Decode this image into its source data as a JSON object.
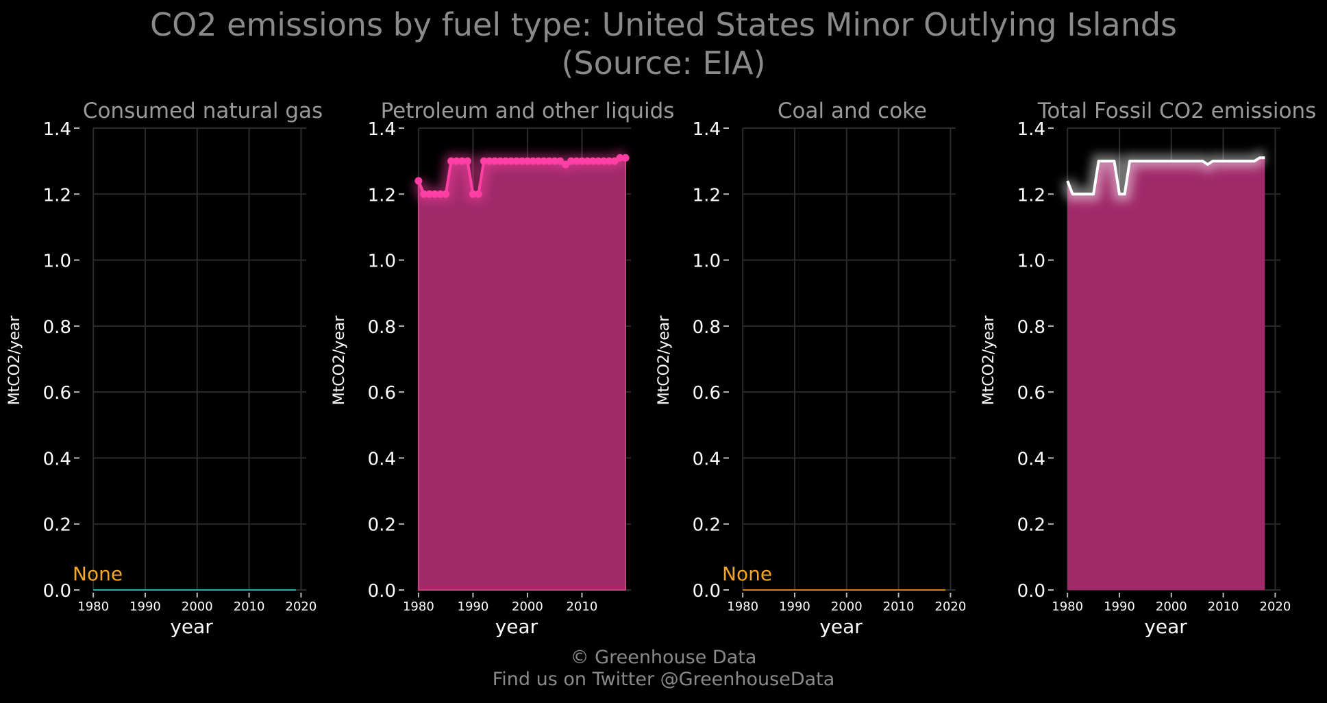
{
  "title_line1": "CO2 emissions by fuel type: United States Minor Outlying Islands",
  "title_line2": "(Source: EIA)",
  "footer_line1": "© Greenhouse Data",
  "footer_line2": "Find us on Twitter @GreenhouseData",
  "colors": {
    "background": "#000000",
    "grid": "#2b2b2b",
    "tick_text": "#ffffff",
    "title_text": "#8a8a8a",
    "panel_title": "#9a9a9a",
    "fill": "#a0296a",
    "petroleum_line": "#ff3fa4",
    "gas_line": "#1fb5b5",
    "coal_line": "#e07b1a",
    "total_line": "#ffffff",
    "none_label": "#f5a623"
  },
  "chart_data": [
    {
      "type": "line",
      "title": "Consumed natural gas",
      "xlabel": "year",
      "ylabel": "MtCO2/year",
      "xlim": [
        1978,
        2021
      ],
      "ylim": [
        0,
        1.4
      ],
      "xticks": [
        1980,
        1990,
        2000,
        2010,
        2020
      ],
      "yticks": [
        0.0,
        0.2,
        0.4,
        0.6,
        0.8,
        1.0,
        1.2,
        1.4
      ],
      "grid": true,
      "annotation": "None",
      "series": [
        {
          "color": "#1fb5b5",
          "markers": false,
          "fill": false,
          "x": [
            1980,
            2019
          ],
          "values": [
            0,
            0
          ]
        }
      ]
    },
    {
      "type": "area",
      "title": "Petroleum and other liquids",
      "xlabel": "year",
      "ylabel": "MtCO2/year",
      "xlim": [
        1978,
        2019
      ],
      "ylim": [
        0,
        1.4
      ],
      "xticks": [
        1980,
        1990,
        2000,
        2010
      ],
      "yticks": [
        0.0,
        0.2,
        0.4,
        0.6,
        0.8,
        1.0,
        1.2,
        1.4
      ],
      "grid": true,
      "annotation": "",
      "series": [
        {
          "color": "#ff3fa4",
          "markers": true,
          "fill": true,
          "x": [
            1980,
            1981,
            1982,
            1983,
            1984,
            1985,
            1986,
            1987,
            1988,
            1989,
            1990,
            1991,
            1992,
            1993,
            1994,
            1995,
            1996,
            1997,
            1998,
            1999,
            2000,
            2001,
            2002,
            2003,
            2004,
            2005,
            2006,
            2007,
            2008,
            2009,
            2010,
            2011,
            2012,
            2013,
            2014,
            2015,
            2016,
            2017,
            2018
          ],
          "values": [
            1.24,
            1.2,
            1.2,
            1.2,
            1.2,
            1.2,
            1.3,
            1.3,
            1.3,
            1.3,
            1.2,
            1.2,
            1.3,
            1.3,
            1.3,
            1.3,
            1.3,
            1.3,
            1.3,
            1.3,
            1.3,
            1.3,
            1.3,
            1.3,
            1.3,
            1.3,
            1.3,
            1.29,
            1.3,
            1.3,
            1.3,
            1.3,
            1.3,
            1.3,
            1.3,
            1.3,
            1.3,
            1.31,
            1.31
          ]
        }
      ]
    },
    {
      "type": "line",
      "title": "Coal and coke",
      "xlabel": "year",
      "ylabel": "MtCO2/year",
      "xlim": [
        1978,
        2021
      ],
      "ylim": [
        0,
        1.4
      ],
      "xticks": [
        1980,
        1990,
        2000,
        2010,
        2020
      ],
      "yticks": [
        0.0,
        0.2,
        0.4,
        0.6,
        0.8,
        1.0,
        1.2,
        1.4
      ],
      "grid": true,
      "annotation": "None",
      "series": [
        {
          "color": "#e07b1a",
          "markers": false,
          "fill": false,
          "x": [
            1980,
            2019
          ],
          "values": [
            0,
            0
          ]
        }
      ]
    },
    {
      "type": "area",
      "title": "Total Fossil CO2 emissions",
      "xlabel": "year",
      "ylabel": "MtCO2/year",
      "xlim": [
        1978,
        2021
      ],
      "ylim": [
        0,
        1.4
      ],
      "xticks": [
        1980,
        1990,
        2000,
        2010,
        2020
      ],
      "yticks": [
        0.0,
        0.2,
        0.4,
        0.6,
        0.8,
        1.0,
        1.2,
        1.4
      ],
      "grid": true,
      "annotation": "",
      "series": [
        {
          "color": "#ffffff",
          "markers": false,
          "fill": true,
          "x": [
            1980,
            1981,
            1982,
            1983,
            1984,
            1985,
            1986,
            1987,
            1988,
            1989,
            1990,
            1991,
            1992,
            1993,
            1994,
            1995,
            1996,
            1997,
            1998,
            1999,
            2000,
            2001,
            2002,
            2003,
            2004,
            2005,
            2006,
            2007,
            2008,
            2009,
            2010,
            2011,
            2012,
            2013,
            2014,
            2015,
            2016,
            2017,
            2018
          ],
          "values": [
            1.24,
            1.2,
            1.2,
            1.2,
            1.2,
            1.2,
            1.3,
            1.3,
            1.3,
            1.3,
            1.2,
            1.2,
            1.3,
            1.3,
            1.3,
            1.3,
            1.3,
            1.3,
            1.3,
            1.3,
            1.3,
            1.3,
            1.3,
            1.3,
            1.3,
            1.3,
            1.3,
            1.29,
            1.3,
            1.3,
            1.3,
            1.3,
            1.3,
            1.3,
            1.3,
            1.3,
            1.3,
            1.31,
            1.31
          ]
        }
      ]
    }
  ]
}
